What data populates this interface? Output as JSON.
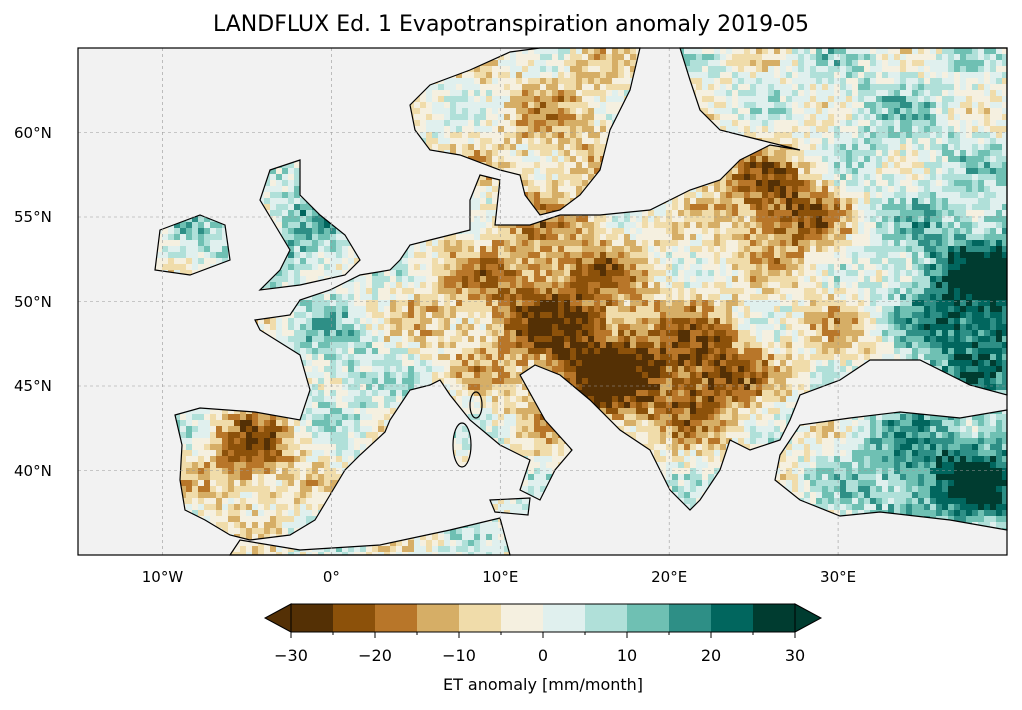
{
  "title": "LANDFLUX Ed. 1 Evapotranspiration anomaly 2019-05",
  "map": {
    "extent_lon": [
      -15,
      40
    ],
    "extent_lat": [
      35,
      65
    ],
    "lon_ticks": [
      {
        "value": -10,
        "label": "10°W"
      },
      {
        "value": 0,
        "label": "0°"
      },
      {
        "value": 10,
        "label": "10°E"
      },
      {
        "value": 20,
        "label": "20°E"
      },
      {
        "value": 30,
        "label": "30°E"
      }
    ],
    "lat_ticks": [
      {
        "value": 60,
        "label": "60°N"
      },
      {
        "value": 55,
        "label": "55°N"
      },
      {
        "value": 50,
        "label": "50°N"
      },
      {
        "value": 45,
        "label": "45°N"
      },
      {
        "value": 40,
        "label": "40°N"
      }
    ],
    "ocean_color": "#f2f2f2"
  },
  "colorbar": {
    "label": "ET anomaly [mm/month]",
    "levels": [
      -30,
      -25,
      -20,
      -15,
      -10,
      -5,
      0,
      5,
      10,
      15,
      20,
      25,
      30
    ],
    "colors": [
      "#543005",
      "#8c510a",
      "#b87629",
      "#d6ae66",
      "#f0dcaa",
      "#f5f0e0",
      "#e0f0ee",
      "#b0e0d9",
      "#6fc0b3",
      "#2e8f86",
      "#01665e",
      "#003c30"
    ],
    "extend": "both",
    "tick_labels": [
      {
        "value": -30,
        "label": "−30"
      },
      {
        "value": -20,
        "label": "−20"
      },
      {
        "value": -10,
        "label": "−10"
      },
      {
        "value": 0,
        "label": "0"
      },
      {
        "value": 10,
        "label": "10"
      },
      {
        "value": 20,
        "label": "20"
      },
      {
        "value": 30,
        "label": "30"
      }
    ]
  }
}
